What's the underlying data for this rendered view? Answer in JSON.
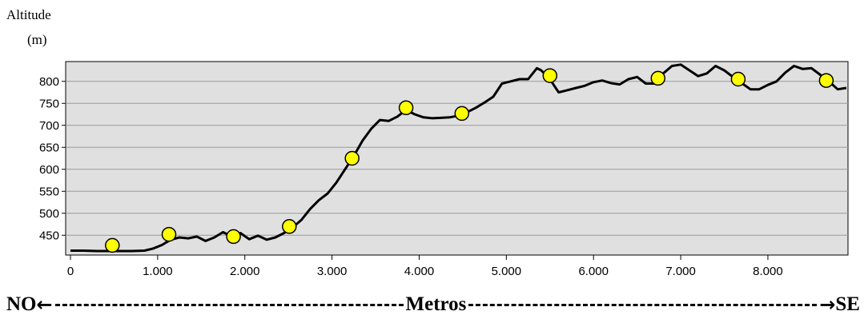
{
  "chart_data": {
    "type": "line",
    "ylabel_line1": "Altitude",
    "ylabel_line2": "(m)",
    "xlim": [
      0,
      8900
    ],
    "ylim": [
      405,
      845
    ],
    "xticks": [
      0,
      1000,
      2000,
      3000,
      4000,
      5000,
      6000,
      7000,
      8000
    ],
    "xtick_labels": [
      "0",
      "1.000",
      "2.000",
      "3.000",
      "4.000",
      "5.000",
      "6.000",
      "7.000",
      "8.000"
    ],
    "yticks": [
      450,
      500,
      550,
      600,
      650,
      700,
      750,
      800
    ],
    "ytick_labels": [
      "450",
      "500",
      "550",
      "600",
      "650",
      "700",
      "750",
      "800"
    ],
    "grid": true,
    "background": "#e0e0e0",
    "line_color": "#000000",
    "marker_color": "#ffff00",
    "profile": [
      [
        0,
        415
      ],
      [
        150,
        415
      ],
      [
        300,
        414
      ],
      [
        500,
        414
      ],
      [
        700,
        414
      ],
      [
        850,
        415
      ],
      [
        950,
        420
      ],
      [
        1050,
        428
      ],
      [
        1150,
        440
      ],
      [
        1250,
        445
      ],
      [
        1350,
        443
      ],
      [
        1450,
        447
      ],
      [
        1550,
        437
      ],
      [
        1650,
        445
      ],
      [
        1750,
        457
      ],
      [
        1850,
        447
      ],
      [
        1950,
        455
      ],
      [
        2050,
        441
      ],
      [
        2150,
        449
      ],
      [
        2250,
        440
      ],
      [
        2350,
        445
      ],
      [
        2450,
        455
      ],
      [
        2550,
        468
      ],
      [
        2650,
        485
      ],
      [
        2750,
        510
      ],
      [
        2850,
        530
      ],
      [
        2950,
        545
      ],
      [
        3050,
        570
      ],
      [
        3150,
        600
      ],
      [
        3250,
        630
      ],
      [
        3350,
        665
      ],
      [
        3450,
        692
      ],
      [
        3550,
        712
      ],
      [
        3650,
        710
      ],
      [
        3750,
        720
      ],
      [
        3850,
        735
      ],
      [
        3950,
        725
      ],
      [
        4050,
        718
      ],
      [
        4150,
        716
      ],
      [
        4250,
        717
      ],
      [
        4350,
        718
      ],
      [
        4450,
        722
      ],
      [
        4550,
        730
      ],
      [
        4650,
        740
      ],
      [
        4750,
        752
      ],
      [
        4850,
        765
      ],
      [
        4950,
        795
      ],
      [
        5050,
        800
      ],
      [
        5150,
        805
      ],
      [
        5250,
        805
      ],
      [
        5350,
        830
      ],
      [
        5400,
        825
      ],
      [
        5450,
        815
      ],
      [
        5500,
        805
      ],
      [
        5550,
        790
      ],
      [
        5600,
        775
      ],
      [
        5700,
        780
      ],
      [
        5800,
        785
      ],
      [
        5900,
        790
      ],
      [
        6000,
        798
      ],
      [
        6100,
        802
      ],
      [
        6200,
        796
      ],
      [
        6300,
        793
      ],
      [
        6400,
        805
      ],
      [
        6500,
        810
      ],
      [
        6600,
        795
      ],
      [
        6700,
        795
      ],
      [
        6800,
        818
      ],
      [
        6900,
        835
      ],
      [
        7000,
        838
      ],
      [
        7100,
        825
      ],
      [
        7200,
        812
      ],
      [
        7300,
        818
      ],
      [
        7400,
        835
      ],
      [
        7500,
        825
      ],
      [
        7600,
        810
      ],
      [
        7700,
        796
      ],
      [
        7800,
        782
      ],
      [
        7900,
        782
      ],
      [
        8000,
        792
      ],
      [
        8100,
        800
      ],
      [
        8200,
        820
      ],
      [
        8300,
        835
      ],
      [
        8400,
        828
      ],
      [
        8500,
        830
      ],
      [
        8600,
        815
      ],
      [
        8700,
        800
      ],
      [
        8800,
        782
      ],
      [
        8900,
        785
      ]
    ],
    "markers": [
      [
        480,
        427
      ],
      [
        1130,
        452
      ],
      [
        1870,
        447
      ],
      [
        2510,
        470
      ],
      [
        3230,
        625
      ],
      [
        3850,
        740
      ],
      [
        4490,
        727
      ],
      [
        5500,
        813
      ],
      [
        6740,
        807
      ],
      [
        7660,
        805
      ],
      [
        8670,
        802
      ]
    ]
  },
  "footer": {
    "left": "NO",
    "left_arrow": "←",
    "center": "Metros",
    "right_arrow": "→",
    "right": "SE"
  }
}
